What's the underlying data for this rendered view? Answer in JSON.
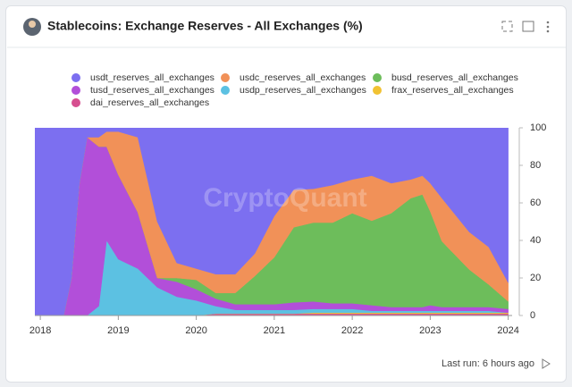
{
  "header": {
    "title": "Stablecoins: Exchange Reserves - All Exchanges (%)",
    "footer": "Last run: 6 hours ago"
  },
  "chart_data": {
    "type": "stacked-area",
    "watermark": "CryptoQuant",
    "grid": false,
    "x": [
      2017.93,
      2018.3,
      2018.4,
      2018.5,
      2018.6,
      2018.75,
      2018.85,
      2019.0,
      2019.25,
      2019.5,
      2019.75,
      2020.0,
      2020.25,
      2020.5,
      2020.75,
      2021.0,
      2021.25,
      2021.5,
      2021.75,
      2022.0,
      2022.25,
      2022.5,
      2022.75,
      2022.9,
      2023.0,
      2023.15,
      2023.5,
      2023.75,
      2024.0
    ],
    "xlim": [
      2017.93,
      2024.05
    ],
    "xticks": [
      2018,
      2019,
      2020,
      2021,
      2022,
      2023,
      2024
    ],
    "y2lim": [
      0,
      100
    ],
    "y2ticks": [
      0,
      20,
      40,
      60,
      80,
      100
    ],
    "series": [
      {
        "name": "usdt_reserves_all_exchanges",
        "color": "#7c6ff0",
        "axis": "y2",
        "values": [
          100,
          100,
          80,
          30,
          5,
          5,
          2,
          2,
          5,
          50,
          72,
          75,
          78,
          78,
          67,
          47,
          33,
          32.5,
          30.5,
          27.5,
          25.5,
          29.5,
          27.5,
          25.5,
          29.5,
          37.5,
          55.5,
          63.5,
          82.5
        ]
      },
      {
        "name": "usdc_reserves_all_exchanges",
        "color": "#f19158",
        "axis": "y2",
        "values": [
          0,
          0,
          0,
          0,
          0,
          5,
          8,
          23,
          40,
          30,
          8,
          6,
          10,
          10,
          12,
          22,
          20,
          18,
          20,
          18,
          24,
          16,
          10,
          10,
          15,
          23,
          20,
          20,
          10
        ]
      },
      {
        "name": "busd_reserves_all_exchanges",
        "color": "#6dbd5b",
        "axis": "y2",
        "values": [
          0,
          0,
          0,
          0,
          0,
          0,
          0,
          0,
          0,
          0,
          2,
          5,
          3,
          6,
          15,
          25,
          40,
          42,
          43,
          48,
          45,
          50,
          58,
          60,
          50,
          35,
          20,
          12,
          4
        ]
      },
      {
        "name": "tusd_reserves_all_exchanges",
        "color": "#b24fd9",
        "axis": "y2",
        "values": [
          0,
          0,
          20,
          70,
          95,
          85,
          50,
          45,
          30,
          5,
          8,
          6,
          4,
          3,
          3,
          3,
          4,
          4,
          3,
          3,
          3,
          2,
          2,
          2,
          3,
          2,
          2,
          2,
          2
        ]
      },
      {
        "name": "usdp_reserves_all_exchanges",
        "color": "#5cc1e2",
        "axis": "y2",
        "values": [
          0,
          0,
          0,
          0,
          0,
          5,
          40,
          30,
          25,
          15,
          10,
          8,
          4,
          2,
          2,
          2,
          2,
          2,
          2,
          2,
          1,
          1,
          1,
          1,
          1,
          1,
          1,
          1,
          0
        ]
      },
      {
        "name": "frax_reserves_all_exchanges",
        "color": "#f1c232",
        "axis": "y2",
        "values": [
          0,
          0,
          0,
          0,
          0,
          0,
          0,
          0,
          0,
          0,
          0,
          0,
          0,
          0,
          0,
          0,
          0,
          0.5,
          0.5,
          0.5,
          0.5,
          0.5,
          0.5,
          0.5,
          0.5,
          0.5,
          0.5,
          0.5,
          0.5
        ]
      },
      {
        "name": "dai_reserves_all_exchanges",
        "color": "#d64f90",
        "axis": "y2",
        "values": [
          0,
          0,
          0,
          0,
          0,
          0,
          0,
          0,
          0,
          0,
          0,
          0,
          1,
          1,
          1,
          1,
          1,
          1,
          1,
          1,
          1,
          1,
          1,
          1,
          1,
          1,
          1,
          1,
          1
        ]
      }
    ]
  }
}
